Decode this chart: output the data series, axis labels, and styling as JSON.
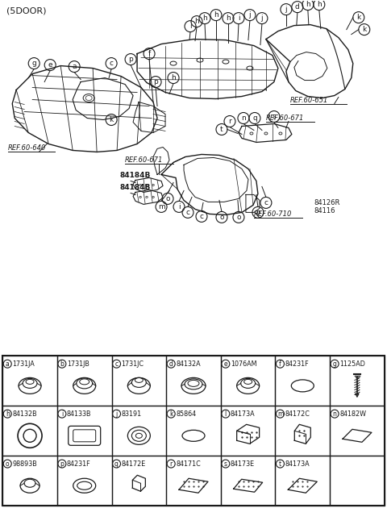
{
  "title": "(5DOOR)",
  "bg_color": "#ffffff",
  "line_color": "#1a1a1a",
  "figsize": [
    4.8,
    6.56
  ],
  "dpi": 100,
  "parts_table": {
    "rows": [
      [
        {
          "label": "a",
          "code": "1731JA",
          "shape": "grommet_3d"
        },
        {
          "label": "b",
          "code": "1731JB",
          "shape": "grommet_3d_b"
        },
        {
          "label": "c",
          "code": "1731JC",
          "shape": "grommet_3d_c"
        },
        {
          "label": "d",
          "code": "84132A",
          "shape": "grommet_flat"
        },
        {
          "label": "e",
          "code": "1076AM",
          "shape": "grommet_3d_e"
        },
        {
          "label": "f",
          "code": "84231F",
          "shape": "oval_flat"
        },
        {
          "label": "g",
          "code": "1125AD",
          "shape": "screw"
        }
      ],
      [
        {
          "label": "h",
          "code": "84132B",
          "shape": "ring_thick"
        },
        {
          "label": "i",
          "code": "84133B",
          "shape": "rect_grommet"
        },
        {
          "label": "j",
          "code": "83191",
          "shape": "grommet_center"
        },
        {
          "label": "k",
          "code": "85864",
          "shape": "oval_thin"
        },
        {
          "label": "l",
          "code": "84173A",
          "shape": "foam_block_l"
        },
        {
          "label": "m",
          "code": "84172C",
          "shape": "foam_block_m"
        },
        {
          "label": "n",
          "code": "84182W",
          "shape": "pad_flat_n"
        }
      ],
      [
        {
          "label": "o",
          "code": "98893B",
          "shape": "grommet_small"
        },
        {
          "label": "p",
          "code": "84231F",
          "shape": "oval_ring"
        },
        {
          "label": "q",
          "code": "84172E",
          "shape": "small_block"
        },
        {
          "label": "r",
          "code": "84171C",
          "shape": "pad_rect_r"
        },
        {
          "label": "s",
          "code": "84173E",
          "shape": "pad_rect_s"
        },
        {
          "label": "t",
          "code": "84173A",
          "shape": "pad_rect_t"
        },
        {
          "label": "",
          "code": "",
          "shape": "empty"
        }
      ]
    ]
  }
}
